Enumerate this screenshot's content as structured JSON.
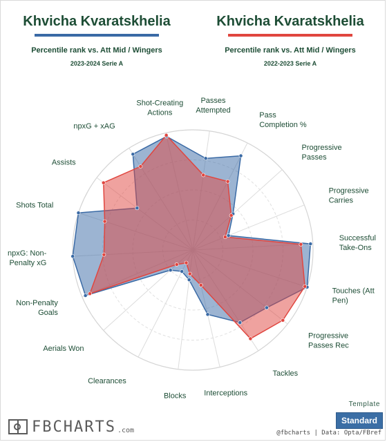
{
  "header": {
    "left": {
      "name": "Khvicha Kvaratskhelia",
      "subtitle": "Percentile rank vs. Att Mid / Wingers",
      "season": "2023-2024 Serie A",
      "color": "#3a6aa5"
    },
    "right": {
      "name": "Khvicha Kvaratskhelia",
      "subtitle": "Percentile rank vs. Att Mid / Wingers",
      "season": "2022-2023 Serie A",
      "color": "#e0463f"
    }
  },
  "chart_data": {
    "type": "radar",
    "rmax": 100,
    "axes": [
      {
        "label": "Passes\nAttempted",
        "angle": 8
      },
      {
        "label": "Pass\nCompletion %",
        "angle": 27
      },
      {
        "label": "Progressive\nPasses",
        "angle": 48
      },
      {
        "label": "Progressive\nCarries",
        "angle": 68
      },
      {
        "label": "Successful\nTake-Ons",
        "angle": 87
      },
      {
        "label": "Touches (Att\nPen)",
        "angle": 108
      },
      {
        "label": "Progressive\nPasses Rec",
        "angle": 128
      },
      {
        "label": "Tackles",
        "angle": 147
      },
      {
        "label": "Interceptions",
        "angle": 167
      },
      {
        "label": "Blocks",
        "angle": 187
      },
      {
        "label": "Clearances",
        "angle": 207
      },
      {
        "label": "Aerials Won",
        "angle": 228
      },
      {
        "label": "Non-Penalty\nGoals",
        "angle": 247
      },
      {
        "label": "npxG: Non-\nPenalty xG",
        "angle": 267
      },
      {
        "label": "Shots Total",
        "angle": 288
      },
      {
        "label": "Assists",
        "angle": 307
      },
      {
        "label": "npxG + xAG",
        "angle": 328
      },
      {
        "label": "Shot-Creating\nActions",
        "angle": 347
      }
    ],
    "series": [
      {
        "name": "2023-2024 Serie A",
        "color": "#3a6aa5",
        "values": [
          77,
          88,
          45,
          32,
          98,
          100,
          78,
          72,
          55,
          25,
          20,
          25,
          97,
          100,
          100,
          58,
          94,
          97
        ]
      },
      {
        "name": "2022-2023 Serie A",
        "color": "#e0463f",
        "values": [
          63,
          64,
          43,
          29,
          90,
          98,
          95,
          88,
          30,
          20,
          12,
          18,
          93,
          74,
          77,
          93,
          82,
          98
        ]
      }
    ]
  },
  "footer": {
    "template_label": "Template",
    "template_value": "Standard",
    "logo_text": "FBCHARTS",
    "logo_suffix": ".com",
    "credits": "@fbcharts | Data: Opta/FBref"
  }
}
